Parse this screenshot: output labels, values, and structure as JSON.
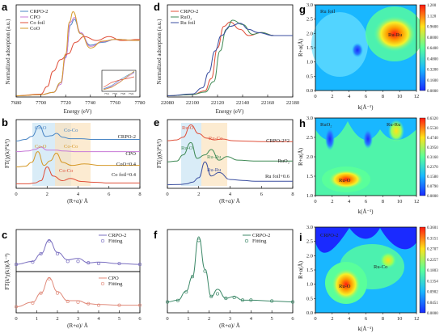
{
  "panels": {
    "a": {
      "label": "a",
      "xlabel": "Energy (eV)",
      "ylabel": "Normalized adsorption (a.u.)",
      "xticks": [
        "7680",
        "7700",
        "7720",
        "7740",
        "7760",
        "7780"
      ],
      "legend": [
        {
          "name": "CRPO-2",
          "color": "#4a86c5"
        },
        {
          "name": "CPO",
          "color": "#c77ad8"
        },
        {
          "name": "Co foil",
          "color": "#e0503a"
        },
        {
          "name": "CoO",
          "color": "#d69a2a"
        }
      ],
      "inset_xticks": [
        "7712",
        "7716",
        "7720",
        "7724"
      ]
    },
    "b": {
      "label": "b",
      "xlabel": "(R+α)/ Å",
      "ylabel": "FT(|χ(k)*k²|)",
      "xticks": [
        "0",
        "2",
        "4",
        "6",
        "8"
      ],
      "series_labels": [
        {
          "text": "CRPO-2",
          "color": "#4a86c5"
        },
        {
          "text": "CPO",
          "color": "#c77ad8"
        },
        {
          "text": "CoO+0.4",
          "color": "#d69a2a"
        },
        {
          "text": "Co foil+0.4",
          "color": "#e0503a"
        }
      ],
      "annotations": [
        {
          "text": "Co-O",
          "color": "#4a86c5"
        },
        {
          "text": "Co-Co",
          "color": "#4a86c5"
        },
        {
          "text": "Co-O",
          "color": "#d69a2a"
        },
        {
          "text": "Co-Co",
          "color": "#d69a2a"
        },
        {
          "text": "Co-Co",
          "color": "#e0503a"
        }
      ]
    },
    "c": {
      "label": "c",
      "xlabel": "(R+α)/ Å",
      "ylabel": "FT(k²χ(k))(Å⁻³)",
      "xticks": [
        "0",
        "1",
        "2",
        "3",
        "4",
        "5",
        "6"
      ],
      "legend_top": [
        {
          "name": "CRPO-2",
          "color": "#7a6fc0"
        },
        {
          "name": "Fitting",
          "color": "#7a6fc0"
        }
      ],
      "legend_bottom": [
        {
          "name": "CPO",
          "color": "#e08a7a"
        },
        {
          "name": "Fitting",
          "color": "#e08a7a"
        }
      ]
    },
    "d": {
      "label": "d",
      "xlabel": "Energy (eV)",
      "ylabel": "Normalized adsorption (a.u.)",
      "xticks": [
        "22080",
        "22100",
        "22120",
        "22140",
        "22160",
        "22180"
      ],
      "legend": [
        {
          "name": "CRPO-2",
          "color": "#e0503a"
        },
        {
          "name": "RuO₂",
          "color": "#3f8a55"
        },
        {
          "name": "Ru foil",
          "color": "#3b4fa0"
        }
      ]
    },
    "e": {
      "label": "e",
      "xlabel": "(R+α)/ Å",
      "ylabel": "FT(|χ(k)*k²|)",
      "xticks": [
        "0",
        "2",
        "4",
        "6",
        "8"
      ],
      "series_labels": [
        {
          "text": "CRPO-2*2",
          "color": "#e0503a"
        },
        {
          "text": "RuO₂",
          "color": "#3f8a55"
        },
        {
          "text": "Ru foil+0.6",
          "color": "#3b4fa0"
        }
      ],
      "annotations": [
        {
          "text": "Ru-O",
          "color": "#e0503a"
        },
        {
          "text": "Ru-Co",
          "color": "#e0503a"
        },
        {
          "text": "Ru-O",
          "color": "#3f8a55"
        },
        {
          "text": "Ru-Ru",
          "color": "#3f8a55"
        },
        {
          "text": "Ru-Ru",
          "color": "#3b4fa0"
        }
      ]
    },
    "f": {
      "label": "f",
      "xlabel": "(R+α)/ Å",
      "ylabel": "",
      "xticks": [
        "0",
        "1",
        "2",
        "3",
        "4",
        "5",
        "6"
      ],
      "legend": [
        {
          "name": "CRPO-2",
          "color": "#3f8a6a"
        },
        {
          "name": "Fitting",
          "color": "#3f8a6a"
        }
      ]
    },
    "g": {
      "label": "g",
      "title": "Ru foil",
      "xlabel": "k(Å⁻¹)",
      "ylabel": "R+α(Å)",
      "xticks": [
        "0",
        "2",
        "4",
        "6",
        "8",
        "10",
        "12"
      ],
      "yticks": [
        "0.0",
        "0.5",
        "1.0",
        "1.5",
        "2.0",
        "2.5",
        "3.0"
      ],
      "spot_label": "Ru-Ru",
      "colorbar": [
        "1.200",
        "1.120",
        "0.9600",
        "0.8000",
        "0.6400",
        "0.4800",
        "0.3200",
        "0.1600",
        "0.0000"
      ]
    },
    "h": {
      "label": "h",
      "title": "RuO₂",
      "xlabel": "k(Å⁻¹)",
      "ylabel": "R+α(Å)",
      "xticks": [
        "0",
        "2",
        "4",
        "6",
        "8",
        "10",
        "12"
      ],
      "yticks": [
        "1.0",
        "1.5",
        "2.0",
        "2.5",
        "3.0"
      ],
      "spot_labels": [
        "Ru-O",
        "Ru-Ru"
      ],
      "colorbar": [
        "0.6320",
        "0.5530",
        "0.4740",
        "0.3950",
        "0.3160",
        "0.2370",
        "0.1580",
        "0.0790",
        "0.0000"
      ]
    },
    "i": {
      "label": "i",
      "title": "CRPO-2",
      "xlabel": "k(Å⁻¹)",
      "ylabel": "R+α(Å)",
      "xticks": [
        "0",
        "2",
        "4",
        "6",
        "8",
        "10",
        "12"
      ],
      "yticks": [
        "0.0",
        "0.5",
        "1.0",
        "1.5",
        "2.0",
        "2.5",
        "3.0"
      ],
      "spot_labels": [
        "Ru-O",
        "Ru-Co"
      ],
      "colorbar": [
        "0.3601",
        "0.3151",
        "0.2707",
        "0.2257",
        "0.1803",
        "0.1354",
        "0.0902",
        "0.0451",
        "0.0000"
      ]
    }
  },
  "chart_data": [
    {
      "type": "line",
      "panel": "a",
      "xlim": [
        7680,
        7780
      ],
      "series": [
        {
          "name": "CRPO-2",
          "x": [
            7680,
            7700,
            7710,
            7716,
            7720,
            7724,
            7727,
            7732,
            7740,
            7750,
            7760,
            7780
          ],
          "y": [
            0.02,
            0.04,
            0.08,
            0.25,
            0.7,
            1.25,
            1.35,
            1.1,
            0.9,
            0.95,
            1.0,
            0.98
          ]
        },
        {
          "name": "CPO",
          "x": [
            7680,
            7700,
            7710,
            7716,
            7720,
            7724,
            7727,
            7732,
            7740,
            7750,
            7760,
            7780
          ],
          "y": [
            0.02,
            0.04,
            0.08,
            0.22,
            0.68,
            1.3,
            1.38,
            1.12,
            0.88,
            0.96,
            1.0,
            0.98
          ]
        },
        {
          "name": "Co foil",
          "x": [
            7680,
            7700,
            7705,
            7710,
            7716,
            7722,
            7728,
            7735,
            7745,
            7755,
            7765,
            7780
          ],
          "y": [
            0.02,
            0.05,
            0.18,
            0.45,
            0.65,
            0.75,
            0.95,
            1.05,
            0.98,
            1.05,
            0.98,
            1.0
          ]
        },
        {
          "name": "CoO",
          "x": [
            7680,
            7700,
            7710,
            7716,
            7720,
            7723,
            7726,
            7732,
            7740,
            7750,
            7760,
            7780
          ],
          "y": [
            0.02,
            0.04,
            0.08,
            0.25,
            0.75,
            1.3,
            1.48,
            1.1,
            0.85,
            0.97,
            1.0,
            0.98
          ]
        }
      ]
    },
    {
      "type": "line",
      "panel": "b",
      "xlim": [
        0,
        8
      ],
      "series": [
        {
          "name": "CRPO-2",
          "x": [
            0,
            0.6,
            1.0,
            1.5,
            1.9,
            2.3,
            2.6,
            3.0,
            3.5,
            4.2,
            5,
            6,
            7,
            8
          ],
          "y": [
            3.6,
            3.7,
            3.9,
            4.6,
            3.9,
            3.95,
            4.1,
            3.85,
            3.75,
            3.75,
            3.7,
            3.7,
            3.7,
            3.7
          ]
        },
        {
          "name": "CPO",
          "x": [
            0,
            0.8,
            1.2,
            1.6,
            2.0,
            2.6,
            3.0,
            4,
            5,
            6,
            7,
            8
          ],
          "y": [
            2.9,
            2.95,
            3.05,
            3.2,
            3.0,
            3.0,
            2.95,
            2.9,
            2.9,
            2.9,
            2.9,
            2.9
          ]
        },
        {
          "name": "CoO+0.4",
          "x": [
            0,
            0.6,
            1.0,
            1.4,
            1.8,
            2.2,
            2.6,
            3.0,
            3.6,
            4.4,
            5.5,
            6.5,
            8
          ],
          "y": [
            1.9,
            1.95,
            2.2,
            2.9,
            2.0,
            2.3,
            2.8,
            2.2,
            2.0,
            2.1,
            2.0,
            2.0,
            2.0
          ]
        },
        {
          "name": "Co foil+0.4",
          "x": [
            0,
            0.8,
            1.2,
            1.6,
            2.0,
            2.4,
            3.0,
            3.5,
            4.2,
            5,
            6,
            7,
            8
          ],
          "y": [
            0.8,
            0.8,
            0.85,
            1.0,
            1.9,
            1.3,
            1.0,
            1.15,
            0.95,
            0.9,
            0.85,
            0.85,
            0.85
          ]
        }
      ]
    },
    {
      "type": "line",
      "panel": "c",
      "xlim": [
        0,
        6
      ],
      "series": [
        {
          "name": "CRPO-2",
          "x": [
            0,
            0.8,
            1.2,
            1.6,
            2.0,
            2.5,
            3.0,
            3.5,
            4,
            5,
            6
          ],
          "y": [
            2.9,
            3.1,
            3.6,
            4.5,
            3.7,
            3.2,
            3.3,
            3.0,
            3.05,
            2.95,
            2.9
          ]
        },
        {
          "name": "Fitting",
          "x": [
            0,
            0.8,
            1.2,
            1.6,
            2.0,
            2.5,
            3.0,
            3.5,
            4,
            5,
            6
          ],
          "y": [
            2.9,
            3.05,
            3.6,
            4.45,
            3.6,
            3.1,
            3.1,
            3.0,
            2.95,
            2.95,
            2.9
          ]
        },
        {
          "name": "CPO",
          "x": [
            0,
            0.8,
            1.2,
            1.6,
            2.0,
            2.5,
            3.0,
            3.5,
            4,
            5,
            6
          ],
          "y": [
            0.1,
            0.4,
            1.0,
            2.0,
            1.1,
            0.5,
            0.5,
            0.3,
            0.25,
            0.2,
            0.2
          ]
        },
        {
          "name": "Fitting",
          "x": [
            0,
            0.8,
            1.2,
            1.6,
            2.0,
            2.5,
            3.0,
            3.5,
            4,
            5,
            6
          ],
          "y": [
            0.1,
            0.35,
            1.0,
            1.95,
            1.0,
            0.45,
            0.4,
            0.3,
            0.2,
            0.2,
            0.2
          ]
        }
      ]
    },
    {
      "type": "line",
      "panel": "d",
      "xlim": [
        22080,
        22180
      ],
      "series": [
        {
          "name": "CRPO-2",
          "x": [
            22080,
            22100,
            22110,
            22115,
            22120,
            22125,
            22130,
            22138,
            22145,
            22155,
            22165,
            22180
          ],
          "y": [
            0.02,
            0.04,
            0.1,
            0.3,
            0.8,
            1.15,
            1.22,
            1.1,
            1.0,
            1.05,
            1.0,
            1.0
          ]
        },
        {
          "name": "RuO₂",
          "x": [
            22080,
            22100,
            22110,
            22117,
            22122,
            22127,
            22132,
            22140,
            22148,
            22155,
            22165,
            22180
          ],
          "y": [
            0.02,
            0.04,
            0.08,
            0.25,
            0.75,
            1.1,
            1.25,
            1.18,
            1.02,
            1.05,
            1.0,
            1.0
          ]
        },
        {
          "name": "Ru foil",
          "x": [
            22080,
            22100,
            22108,
            22113,
            22118,
            22123,
            22130,
            22138,
            22145,
            22152,
            22165,
            22180
          ],
          "y": [
            0.02,
            0.05,
            0.15,
            0.4,
            0.75,
            1.0,
            1.15,
            1.2,
            1.1,
            1.05,
            1.0,
            1.0
          ]
        }
      ]
    },
    {
      "type": "line",
      "panel": "e",
      "xlim": [
        0,
        8
      ],
      "series": [
        {
          "name": "CRPO-2*2",
          "x": [
            0,
            0.6,
            1.0,
            1.5,
            2.0,
            2.5,
            3.0,
            3.5,
            4.2,
            5,
            6,
            7,
            8
          ],
          "y": [
            3.1,
            3.15,
            3.3,
            4.0,
            3.5,
            3.25,
            3.15,
            3.2,
            3.1,
            3.08,
            3.05,
            3.05,
            3.05
          ]
        },
        {
          "name": "RuO₂",
          "x": [
            0,
            0.6,
            1.0,
            1.5,
            1.9,
            2.4,
            2.8,
            3.3,
            3.8,
            4.5,
            5.5,
            6.5,
            8
          ],
          "y": [
            1.9,
            1.95,
            2.3,
            3.0,
            2.1,
            2.3,
            2.6,
            2.0,
            2.2,
            2.0,
            1.95,
            1.95,
            1.95
          ]
        },
        {
          "name": "Ru foil+0.6",
          "x": [
            0,
            0.8,
            1.2,
            1.6,
            2.0,
            2.4,
            2.8,
            3.3,
            4,
            4.8,
            5.6,
            6.5,
            8
          ],
          "y": [
            0.6,
            0.62,
            0.65,
            0.75,
            1.0,
            1.9,
            1.1,
            1.3,
            0.9,
            0.85,
            0.8,
            0.8,
            0.8
          ]
        }
      ]
    },
    {
      "type": "line",
      "panel": "f",
      "xlim": [
        0,
        6
      ],
      "series": [
        {
          "name": "CRPO-2",
          "x": [
            0,
            0.5,
            0.9,
            1.2,
            1.5,
            1.8,
            2.1,
            2.4,
            2.8,
            3.2,
            3.6,
            4,
            5,
            6
          ],
          "y": [
            0.6,
            0.7,
            1.2,
            2.0,
            4.2,
            2.4,
            0.9,
            1.3,
            0.8,
            0.9,
            0.7,
            0.7,
            0.65,
            0.6
          ]
        },
        {
          "name": "Fitting",
          "x": [
            0,
            0.5,
            0.9,
            1.2,
            1.5,
            1.8,
            2.1,
            2.4,
            2.8,
            3.2,
            3.6,
            4,
            5,
            6
          ],
          "y": [
            0.6,
            0.68,
            1.15,
            2.0,
            4.0,
            2.3,
            0.9,
            1.05,
            0.8,
            0.85,
            0.7,
            0.7,
            0.65,
            0.6
          ]
        }
      ]
    },
    {
      "type": "heatmap",
      "panel": "g",
      "xlim": [
        0,
        12
      ],
      "ylim": [
        0,
        3
      ],
      "zlim": [
        0,
        1.2
      ],
      "peaks": [
        {
          "k": 9.5,
          "R": 2.3,
          "label": "Ru-Ru"
        }
      ]
    },
    {
      "type": "heatmap",
      "panel": "h",
      "xlim": [
        0,
        12
      ],
      "ylim": [
        1,
        3
      ],
      "zlim": [
        0,
        0.632
      ],
      "peaks": [
        {
          "k": 4.3,
          "R": 1.25,
          "label": "Ru-O"
        },
        {
          "k": 9.5,
          "R": 2.65,
          "label": "Ru-Ru"
        }
      ]
    },
    {
      "type": "heatmap",
      "panel": "i",
      "xlim": [
        0,
        12
      ],
      "ylim": [
        0,
        3
      ],
      "zlim": [
        0,
        0.3601
      ],
      "peaks": [
        {
          "k": 4.0,
          "R": 1.5,
          "label": "Ru-O"
        },
        {
          "k": 9.0,
          "R": 2.2,
          "label": "Ru-Co"
        }
      ]
    }
  ]
}
